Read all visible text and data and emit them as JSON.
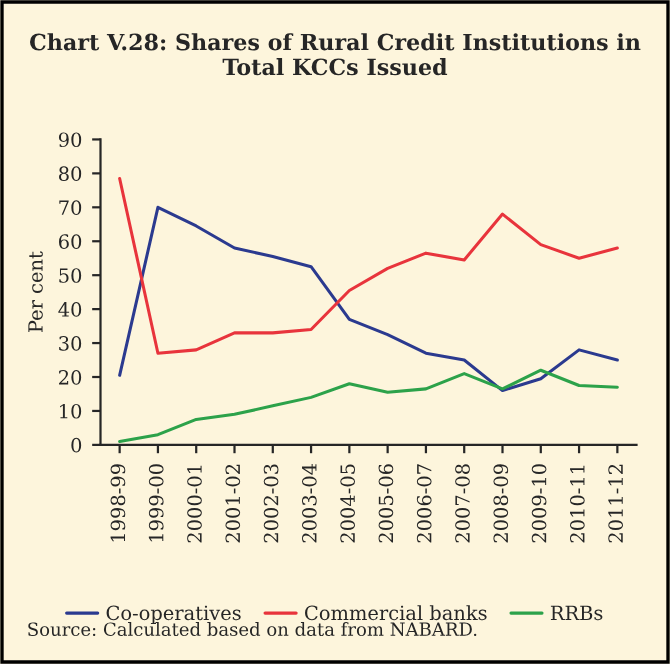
{
  "chart_data": {
    "type": "line",
    "title": "Chart V.28: Shares of Rural Credit Institutions in Total KCCs Issued",
    "ylabel": "Per cent",
    "categories": [
      "1998-99",
      "1999-00",
      "2000-01",
      "2001-02",
      "2002-03",
      "2003-04",
      "2004-05",
      "2005-06",
      "2006-07",
      "2007-08",
      "2008-09",
      "2009-10",
      "2010-11",
      "2011-12"
    ],
    "series": [
      {
        "name": "Co-operatives",
        "color": "#2b3a8f",
        "values": [
          20.5,
          70,
          64.5,
          58,
          55.5,
          52.5,
          37,
          32.5,
          27,
          25,
          16,
          19.5,
          28,
          25
        ]
      },
      {
        "name": "Commercial banks",
        "color": "#e8343c",
        "values": [
          78.5,
          27,
          28,
          33,
          33,
          34,
          45.5,
          52,
          56.5,
          54.5,
          68,
          59,
          55,
          58
        ]
      },
      {
        "name": "RRBs",
        "color": "#2ca24a",
        "values": [
          1,
          3,
          7.5,
          9,
          11.5,
          14,
          18,
          15.5,
          16.5,
          21,
          16.5,
          22,
          17.5,
          17
        ]
      }
    ],
    "ylim": [
      0,
      90
    ],
    "yticks": [
      0,
      10,
      20,
      30,
      40,
      50,
      60,
      70,
      80,
      90
    ],
    "grid": false,
    "legend": "bottom",
    "marker": "none",
    "line_style": "solid",
    "annotations": [
      "Source: Calculated based on data from NABARD."
    ]
  }
}
